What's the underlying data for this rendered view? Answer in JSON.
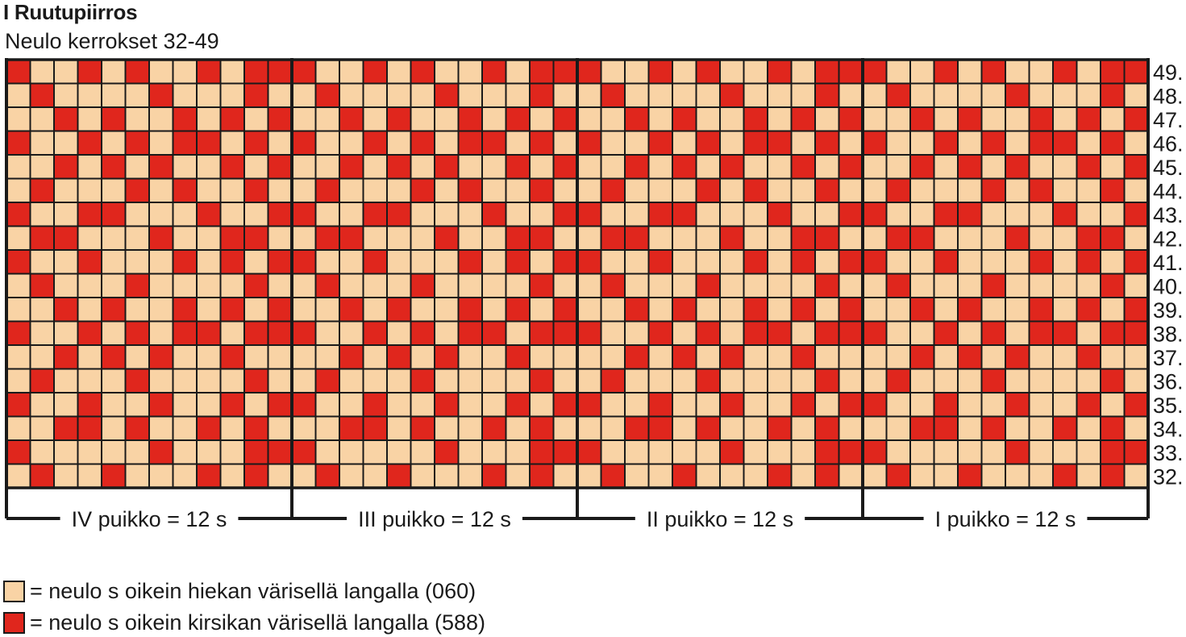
{
  "title": "I Ruutupiirros",
  "subtitle": "Neulo kerrokset 32-49",
  "colors": {
    "background": "#f9d3a5",
    "contrast": "#e0261d",
    "line": "#1a1a1a"
  },
  "rows": [
    {
      "label": "49.",
      "pattern": "100101001011"
    },
    {
      "label": "48.",
      "pattern": "010000100010"
    },
    {
      "label": "47.",
      "pattern": "001010010101"
    },
    {
      "label": "46.",
      "pattern": "100101011010"
    },
    {
      "label": "45.",
      "pattern": "001010100101"
    },
    {
      "label": "44.",
      "pattern": "010001010010"
    },
    {
      "label": "43.",
      "pattern": "100110001001"
    },
    {
      "label": "42.",
      "pattern": "011000100110"
    },
    {
      "label": "41.",
      "pattern": "100100010101"
    },
    {
      "label": "40.",
      "pattern": "010001000010"
    },
    {
      "label": "39.",
      "pattern": "001010010101"
    },
    {
      "label": "38.",
      "pattern": "100101011011"
    },
    {
      "label": "37.",
      "pattern": "001010100100"
    },
    {
      "label": "36.",
      "pattern": "010001000010"
    },
    {
      "label": "35.",
      "pattern": "100100100101"
    },
    {
      "label": "34.",
      "pattern": "001101001010"
    },
    {
      "label": "33.",
      "pattern": "100000100011"
    },
    {
      "label": "32.",
      "pattern": "010010001010"
    }
  ],
  "needles": [
    {
      "label": "IV puikko = 12 s"
    },
    {
      "label": "III puikko = 12 s"
    },
    {
      "label": "II puikko = 12 s"
    },
    {
      "label": "I puikko = 12 s"
    }
  ],
  "legend": [
    {
      "color_key": "background",
      "text": "= neulo s oikein hiekan värisellä langalla (060)"
    },
    {
      "color_key": "contrast",
      "text": "= neulo s oikein kirsikan värisellä langalla (588)"
    }
  ]
}
